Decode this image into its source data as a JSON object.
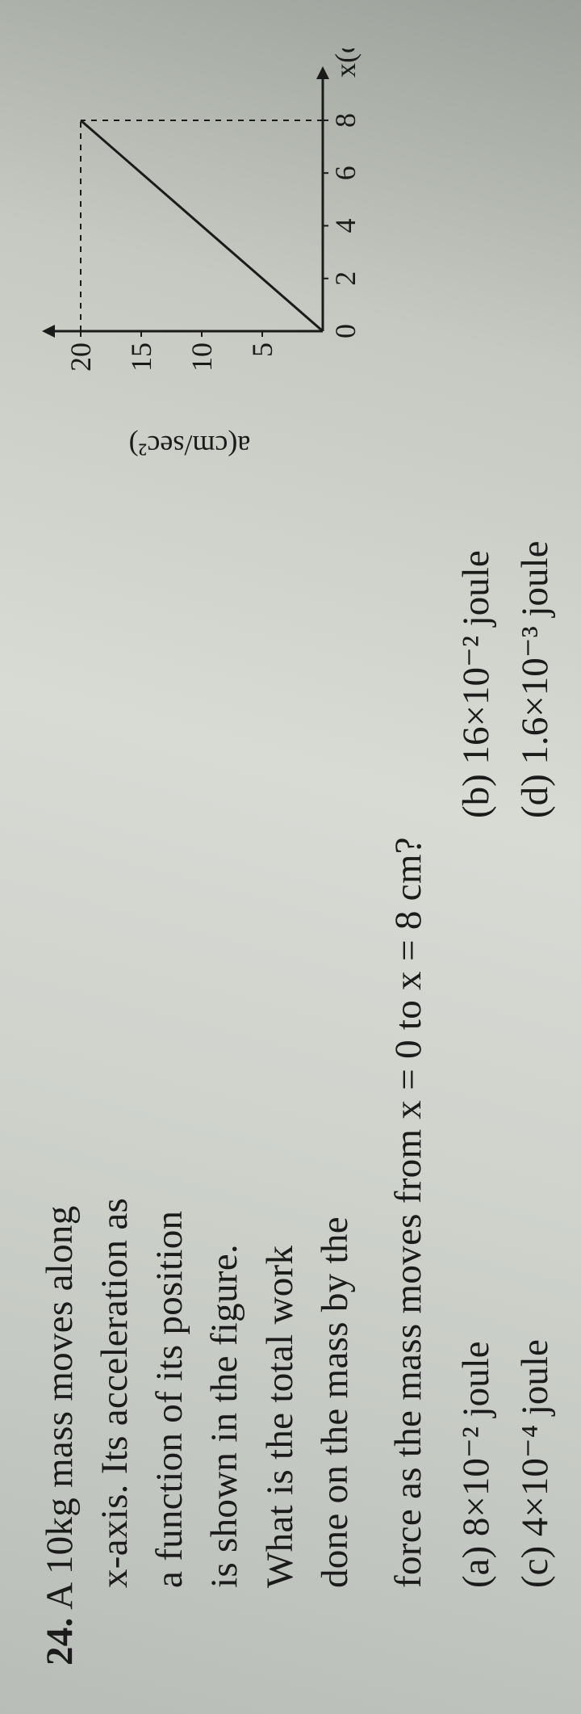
{
  "question": {
    "number": "24.",
    "lines": [
      "A 10kg mass moves along",
      "x-axis. Its acceleration as",
      "a function of its position",
      "is shown in the figure.",
      "What is the total work",
      "done on the mass by the"
    ],
    "continuation": "force as the mass moves from x = 0 to x = 8 cm?"
  },
  "options": {
    "a": "(a) 8×10⁻² joule",
    "b": "(b) 16×10⁻² joule",
    "c": "(c) 4×10⁻⁴ joule",
    "d": "(d) 1.6×10⁻³ joule"
  },
  "chart": {
    "type": "line",
    "y_axis_label": "a(cm/sec²)",
    "x_axis_label": "x(cm)",
    "x_ticks": [
      0,
      2,
      4,
      6,
      8
    ],
    "y_ticks": [
      5,
      10,
      15,
      20
    ],
    "xlim": [
      0,
      9.5
    ],
    "ylim": [
      0,
      22
    ],
    "line_points": [
      [
        0,
        0
      ],
      [
        8,
        20
      ]
    ],
    "line_color": "#1b1b1b",
    "line_width": 3,
    "dashed_lines": [
      {
        "from": [
          0,
          20
        ],
        "to": [
          8,
          20
        ]
      },
      {
        "from": [
          8,
          0
        ],
        "to": [
          8,
          20
        ]
      }
    ],
    "dash_color": "#1b1b1b",
    "axis_color": "#1b1b1b",
    "axis_width": 3,
    "background_color": "transparent",
    "arrowheads": true
  }
}
